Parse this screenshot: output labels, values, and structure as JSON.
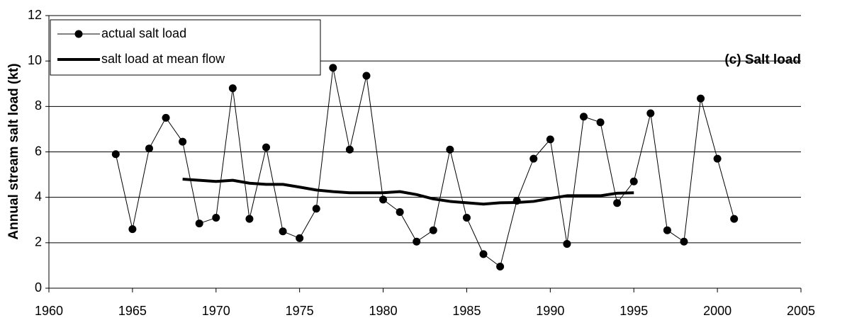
{
  "chart_data": {
    "type": "line",
    "ylabel": "Annual stream salt load (kt)",
    "annotation": "(c) Salt load",
    "xlim": [
      1960,
      2005
    ],
    "xticks": [
      1960,
      1965,
      1970,
      1975,
      1980,
      1985,
      1990,
      1995,
      2000,
      2005
    ],
    "ylim": [
      0,
      12
    ],
    "yticks": [
      0,
      2,
      4,
      6,
      8,
      10,
      12
    ],
    "grid": true,
    "legend": "upper left",
    "series": [
      {
        "name": "actual salt load",
        "color": "#000000",
        "marker": "circle",
        "line_width": 1,
        "x": [
          1964,
          1965,
          1966,
          1967,
          1968,
          1969,
          1970,
          1971,
          1972,
          1973,
          1974,
          1975,
          1976,
          1977,
          1978,
          1979,
          1980,
          1981,
          1982,
          1983,
          1984,
          1985,
          1986,
          1987,
          1988,
          1989,
          1990,
          1991,
          1992,
          1993,
          1994,
          1995,
          1996,
          1997,
          1998,
          1999,
          2000,
          2001
        ],
        "values": [
          5.9,
          2.6,
          6.15,
          7.5,
          6.45,
          2.85,
          3.1,
          8.8,
          3.05,
          6.2,
          2.5,
          2.2,
          3.5,
          9.7,
          6.1,
          9.35,
          3.9,
          3.35,
          2.05,
          2.55,
          6.1,
          3.1,
          1.5,
          0.95,
          3.85,
          5.7,
          6.55,
          1.95,
          7.55,
          7.3,
          3.75,
          4.7,
          7.7,
          2.55,
          2.05,
          8.35,
          5.7,
          3.05
        ]
      },
      {
        "name": "salt load at mean flow",
        "color": "#000000",
        "marker": "none",
        "line_width": 4,
        "x": [
          1968,
          1969,
          1970,
          1971,
          1972,
          1973,
          1974,
          1975,
          1976,
          1977,
          1978,
          1979,
          1980,
          1981,
          1982,
          1983,
          1984,
          1985,
          1986,
          1987,
          1988,
          1989,
          1990,
          1991,
          1992,
          1993,
          1994,
          1995
        ],
        "values": [
          4.8,
          4.75,
          4.7,
          4.75,
          4.62,
          4.57,
          4.57,
          4.45,
          4.32,
          4.25,
          4.2,
          4.2,
          4.2,
          4.25,
          4.12,
          3.93,
          3.82,
          3.76,
          3.7,
          3.76,
          3.77,
          3.82,
          3.95,
          4.07,
          4.07,
          4.07,
          4.18,
          4.2
        ]
      }
    ]
  }
}
